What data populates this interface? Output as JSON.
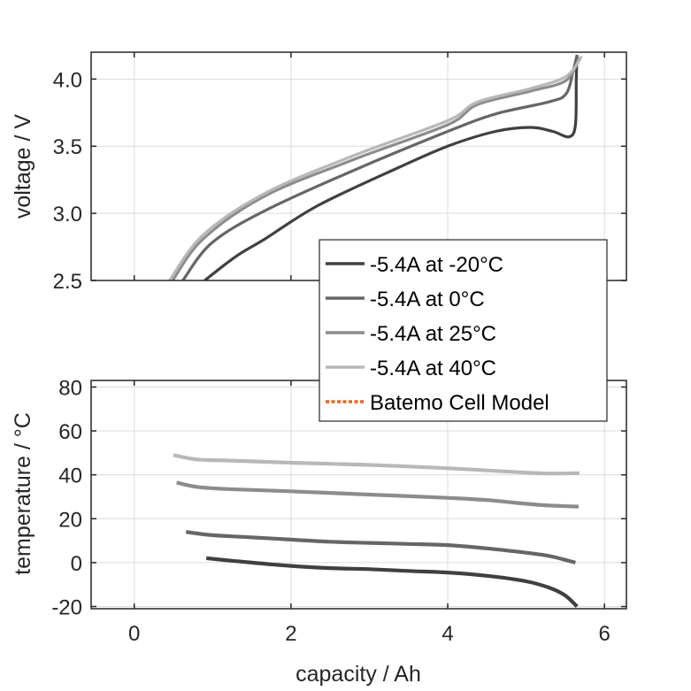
{
  "chart_data": [
    {
      "type": "line",
      "panel": "top",
      "title": "",
      "xlabel": "",
      "ylabel": "voltage / V",
      "xlim": [
        -0.55,
        6.28
      ],
      "ylim": [
        2.5,
        4.2
      ],
      "xticks": [
        0,
        2,
        4,
        6
      ],
      "yticks": [
        2.5,
        3.0,
        3.5,
        4.0
      ],
      "ytick_labels": [
        "2.5",
        "3.0",
        "3.5",
        "4.0"
      ],
      "show_xtick_labels": false,
      "grid": true,
      "series": [
        {
          "name": "-5.4A at -20°C",
          "color": "#404040",
          "x": [
            0.9,
            1.3,
            1.67,
            2.35,
            3.37,
            4.0,
            4.61,
            5.06,
            5.34,
            5.55,
            5.63,
            5.64,
            5.65
          ],
          "y": [
            2.5,
            2.68,
            2.81,
            3.06,
            3.34,
            3.5,
            3.61,
            3.64,
            3.61,
            3.57,
            3.66,
            3.99,
            4.18
          ]
        },
        {
          "name": "-5.4A at 0°C",
          "color": "#666666",
          "x": [
            0.62,
            0.99,
            1.67,
            2.8,
            4.0,
            4.61,
            5.29,
            5.51,
            5.6,
            5.65
          ],
          "y": [
            2.5,
            2.78,
            3.02,
            3.32,
            3.61,
            3.74,
            3.83,
            3.89,
            4.06,
            4.18
          ]
        },
        {
          "name": "-5.4A at 25°C",
          "color": "#8c8c8c",
          "x": [
            0.49,
            0.88,
            1.67,
            2.8,
            4.0,
            4.38,
            5.06,
            5.51,
            5.68
          ],
          "y": [
            2.5,
            2.81,
            3.13,
            3.4,
            3.66,
            3.81,
            3.91,
            3.99,
            4.16
          ]
        },
        {
          "name": "-5.4A at 40°C",
          "color": "#b8b8b8",
          "x": [
            0.45,
            0.88,
            1.67,
            2.8,
            4.0,
            4.38,
            5.06,
            5.51,
            5.71
          ],
          "y": [
            2.5,
            2.84,
            3.15,
            3.43,
            3.69,
            3.83,
            3.93,
            4.02,
            4.17
          ]
        }
      ]
    },
    {
      "type": "line",
      "panel": "bottom",
      "title": "",
      "xlabel": "capacity / Ah",
      "ylabel": "temperature / °C",
      "xlim": [
        -0.55,
        6.28
      ],
      "ylim": [
        -21,
        83
      ],
      "xticks": [
        0,
        2,
        4,
        6
      ],
      "xtick_labels": [
        "0",
        "2",
        "4",
        "6"
      ],
      "yticks": [
        -20,
        0,
        20,
        40,
        60,
        80
      ],
      "ytick_labels": [
        "-20",
        "0",
        "20",
        "40",
        "60",
        "80"
      ],
      "grid": true,
      "series": [
        {
          "name": "-5.4A at -20°C",
          "color": "#404040",
          "x": [
            0.92,
            1.5,
            2.0,
            2.5,
            3.0,
            3.5,
            4.0,
            4.5,
            5.0,
            5.3,
            5.5,
            5.65
          ],
          "y": [
            2.0,
            0.0,
            -1.5,
            -2.5,
            -3.0,
            -3.8,
            -4.5,
            -6.0,
            -8.5,
            -11.5,
            -15.0,
            -20.0
          ]
        },
        {
          "name": "-5.4A at 0°C",
          "color": "#666666",
          "x": [
            0.66,
            1.0,
            1.5,
            2.0,
            2.5,
            3.0,
            3.5,
            4.0,
            4.5,
            5.0,
            5.3,
            5.63
          ],
          "y": [
            14.0,
            12.5,
            11.5,
            10.5,
            9.5,
            9.0,
            8.5,
            8.0,
            6.5,
            4.5,
            3.0,
            0.0
          ]
        },
        {
          "name": "-5.4A at 25°C",
          "color": "#8c8c8c",
          "x": [
            0.54,
            0.8,
            1.2,
            2.0,
            3.0,
            4.0,
            4.5,
            5.0,
            5.3,
            5.67
          ],
          "y": [
            36.5,
            34.5,
            33.5,
            32.5,
            31.0,
            29.5,
            28.5,
            26.8,
            26.0,
            25.5
          ]
        },
        {
          "name": "-5.4A at 40°C",
          "color": "#b8b8b8",
          "x": [
            0.5,
            0.8,
            1.2,
            2.0,
            3.0,
            4.0,
            4.5,
            5.0,
            5.3,
            5.68
          ],
          "y": [
            49.0,
            47.0,
            46.5,
            45.5,
            44.5,
            43.0,
            42.0,
            41.0,
            40.6,
            40.8
          ]
        }
      ]
    }
  ],
  "legend": {
    "placement": "center-right",
    "entries": [
      {
        "label": "-5.4A at -20°C",
        "color": "#404040",
        "style": "solid"
      },
      {
        "label": "-5.4A at 0°C",
        "color": "#666666",
        "style": "solid"
      },
      {
        "label": "-5.4A at 25°C",
        "color": "#8c8c8c",
        "style": "solid"
      },
      {
        "label": "-5.4A at 40°C",
        "color": "#b8b8b8",
        "style": "solid"
      },
      {
        "label": "Batemo Cell Model",
        "color": "#f26419",
        "style": "dotted"
      }
    ]
  }
}
